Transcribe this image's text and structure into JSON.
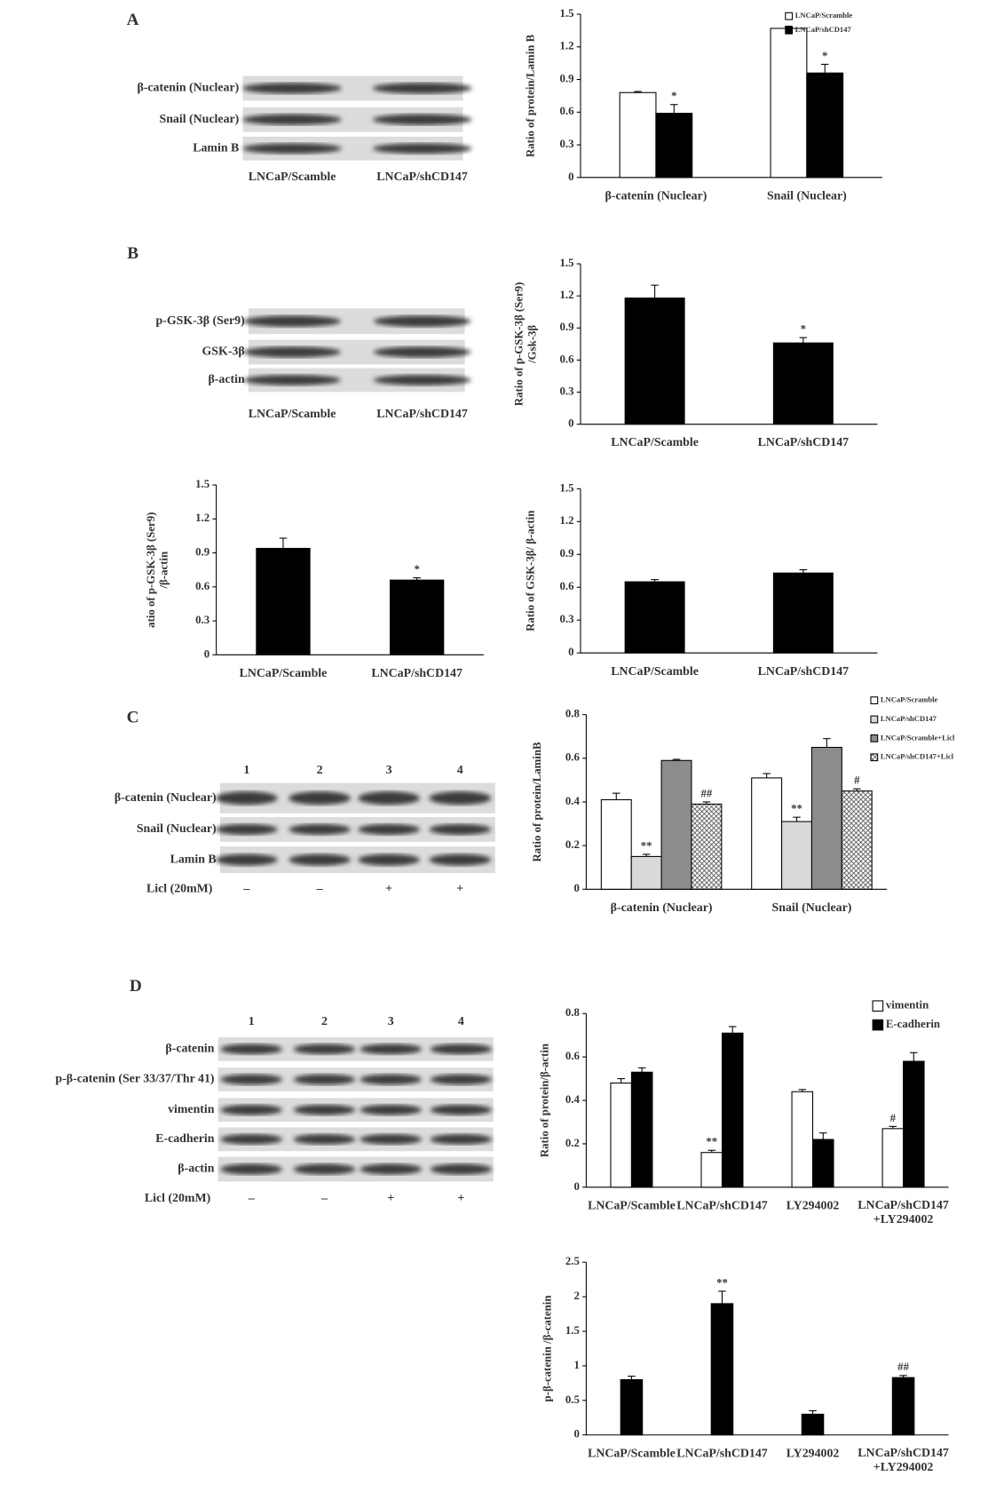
{
  "blots": [
    {
      "panel": "A",
      "rows": [
        "β-catenin (Nuclear)",
        "Snail (Nuclear)",
        "Lamin B"
      ],
      "lanes": [
        "LNCaP/Scamble",
        "LNCaP/shCD147"
      ]
    },
    {
      "panel": "B",
      "rows": [
        "p-GSK-3β (Ser9)",
        "GSK-3β",
        "β-actin"
      ],
      "lanes": [
        "LNCaP/Scamble",
        "LNCaP/shCD147"
      ]
    },
    {
      "panel": "C",
      "rows": [
        "β-catenin (Nuclear)",
        "Snail (Nuclear)",
        "Lamin B"
      ],
      "lanes": [
        "1",
        "2",
        "3",
        "4"
      ],
      "treatment": {
        "label": "Licl (20mM)",
        "values": [
          "–",
          "–",
          "+",
          "+"
        ]
      }
    },
    {
      "panel": "D",
      "rows": [
        "β-catenin",
        "p-β-catenin (Ser 33/37/Thr 41)",
        "vimentin",
        "E-cadherin",
        "β-actin"
      ],
      "lanes": [
        "1",
        "2",
        "3",
        "4"
      ],
      "treatment": {
        "label": "Licl (20mM)",
        "values": [
          "–",
          "–",
          "+",
          "+"
        ]
      }
    }
  ],
  "chart_data": [
    {
      "type": "bar",
      "ylabel": "Ratio of protein/Lamin B",
      "categories": [
        "β-catenin (Nuclear)",
        "Snail (Nuclear)"
      ],
      "series": [
        {
          "name": "LNCaP/Scramble",
          "color": "#ffffff",
          "values": [
            0.78,
            1.37
          ],
          "errors": [
            0.01,
            0.02
          ],
          "markers": [
            null,
            null
          ]
        },
        {
          "name": "LNCaP/shCD147",
          "color": "#000000",
          "values": [
            0.59,
            0.96
          ],
          "errors": [
            0.08,
            0.08
          ],
          "markers": [
            "*",
            "*"
          ]
        }
      ],
      "ylim": [
        0,
        1.5
      ],
      "yticks": [
        0,
        0.3,
        0.6,
        0.9,
        1.2,
        1.5
      ]
    },
    {
      "type": "bar",
      "ylabel": "Ratio of p-GSK-3β (Ser9)\n/Gsk-3β",
      "categories": [
        "LNCaP/Scamble",
        "LNCaP/shCD147"
      ],
      "series": [
        {
          "color": "#000000",
          "values": [
            1.18,
            0.76
          ],
          "errors": [
            0.12,
            0.05
          ],
          "markers": [
            null,
            "*"
          ]
        }
      ],
      "ylim": [
        0,
        1.5
      ],
      "yticks": [
        0,
        0.3,
        0.6,
        0.9,
        1.2,
        1.5
      ]
    },
    {
      "type": "bar",
      "ylabel": "atio of p-GSK-3β (Ser9)\n/β-actin",
      "categories": [
        "LNCaP/Scamble",
        "LNCaP/shCD147"
      ],
      "series": [
        {
          "color": "#000000",
          "values": [
            0.94,
            0.66
          ],
          "errors": [
            0.09,
            0.02
          ],
          "markers": [
            null,
            "*"
          ]
        }
      ],
      "ylim": [
        0,
        1.5
      ],
      "yticks": [
        0,
        0.3,
        0.6,
        0.9,
        1.2,
        1.5
      ]
    },
    {
      "type": "bar",
      "ylabel": "Ratio of GSK-3β/ β-actin",
      "categories": [
        "LNCaP/Scamble",
        "LNCaP/shCD147"
      ],
      "series": [
        {
          "color": "#000000",
          "values": [
            0.65,
            0.73
          ],
          "errors": [
            0.02,
            0.03
          ],
          "markers": [
            null,
            null
          ]
        }
      ],
      "ylim": [
        0,
        1.5
      ],
      "yticks": [
        0,
        0.3,
        0.6,
        0.9,
        1.2,
        1.5
      ]
    },
    {
      "type": "bar",
      "ylabel": "Ratio of protein/LaminB",
      "categories": [
        "β-catenin (Nuclear)",
        "Snail (Nuclear)"
      ],
      "series": [
        {
          "name": "LNCaP/Scramble",
          "color": "#ffffff",
          "values": [
            0.41,
            0.51
          ],
          "errors": [
            0.03,
            0.02
          ],
          "markers": [
            null,
            null
          ]
        },
        {
          "name": "LNCaP/shCD147",
          "color": "#d9d9d9",
          "values": [
            0.15,
            0.31
          ],
          "errors": [
            0.01,
            0.02
          ],
          "markers": [
            "**",
            "**"
          ]
        },
        {
          "name": "LNCaP/Scramble+Licl",
          "color": "#8c8c8c",
          "values": [
            0.59,
            0.65
          ],
          "errors": [
            0.005,
            0.04
          ],
          "markers": [
            null,
            null
          ]
        },
        {
          "name": "LNCaP/shCD147+Licl",
          "color": "#ffffff",
          "pattern": "crosshatch",
          "values": [
            0.39,
            0.45
          ],
          "errors": [
            0.01,
            0.01
          ],
          "markers": [
            "##",
            "#"
          ]
        }
      ],
      "ylim": [
        0,
        0.8
      ],
      "yticks": [
        0,
        0.2,
        0.4,
        0.6,
        0.8
      ]
    },
    {
      "type": "bar",
      "ylabel": "Ratio of protein/β-actin",
      "categories": [
        "LNCaP/Scamble",
        "LNCaP/shCD147",
        "LY294002",
        "LNCaP/shCD147\n+LY294002"
      ],
      "series": [
        {
          "name": "vimentin",
          "color": "#ffffff",
          "values": [
            0.48,
            0.16,
            0.44,
            0.27
          ],
          "errors": [
            0.02,
            0.01,
            0.01,
            0.01
          ],
          "markers": [
            null,
            "**",
            null,
            "#"
          ]
        },
        {
          "name": "E-cadherin",
          "color": "#000000",
          "values": [
            0.53,
            0.71,
            0.22,
            0.58
          ],
          "errors": [
            0.02,
            0.03,
            0.03,
            0.04
          ],
          "markers": [
            null,
            null,
            null,
            null
          ]
        }
      ],
      "ylim": [
        0,
        0.8
      ],
      "yticks": [
        0,
        0.2,
        0.4,
        0.6,
        0.8
      ]
    },
    {
      "type": "bar",
      "ylabel": "p-β-catenin /β-catenin",
      "categories": [
        "LNCaP/Scamble",
        "LNCaP/shCD147",
        "LY294002",
        "LNCaP/shCD147\n+LY294002"
      ],
      "series": [
        {
          "color": "#000000",
          "values": [
            0.8,
            1.9,
            0.3,
            0.83
          ],
          "errors": [
            0.05,
            0.18,
            0.05,
            0.03
          ],
          "markers": [
            null,
            "**",
            null,
            "##"
          ]
        }
      ],
      "ylim": [
        0,
        2.5
      ],
      "yticks": [
        0,
        0.5,
        1,
        1.5,
        2,
        2.5
      ]
    }
  ]
}
